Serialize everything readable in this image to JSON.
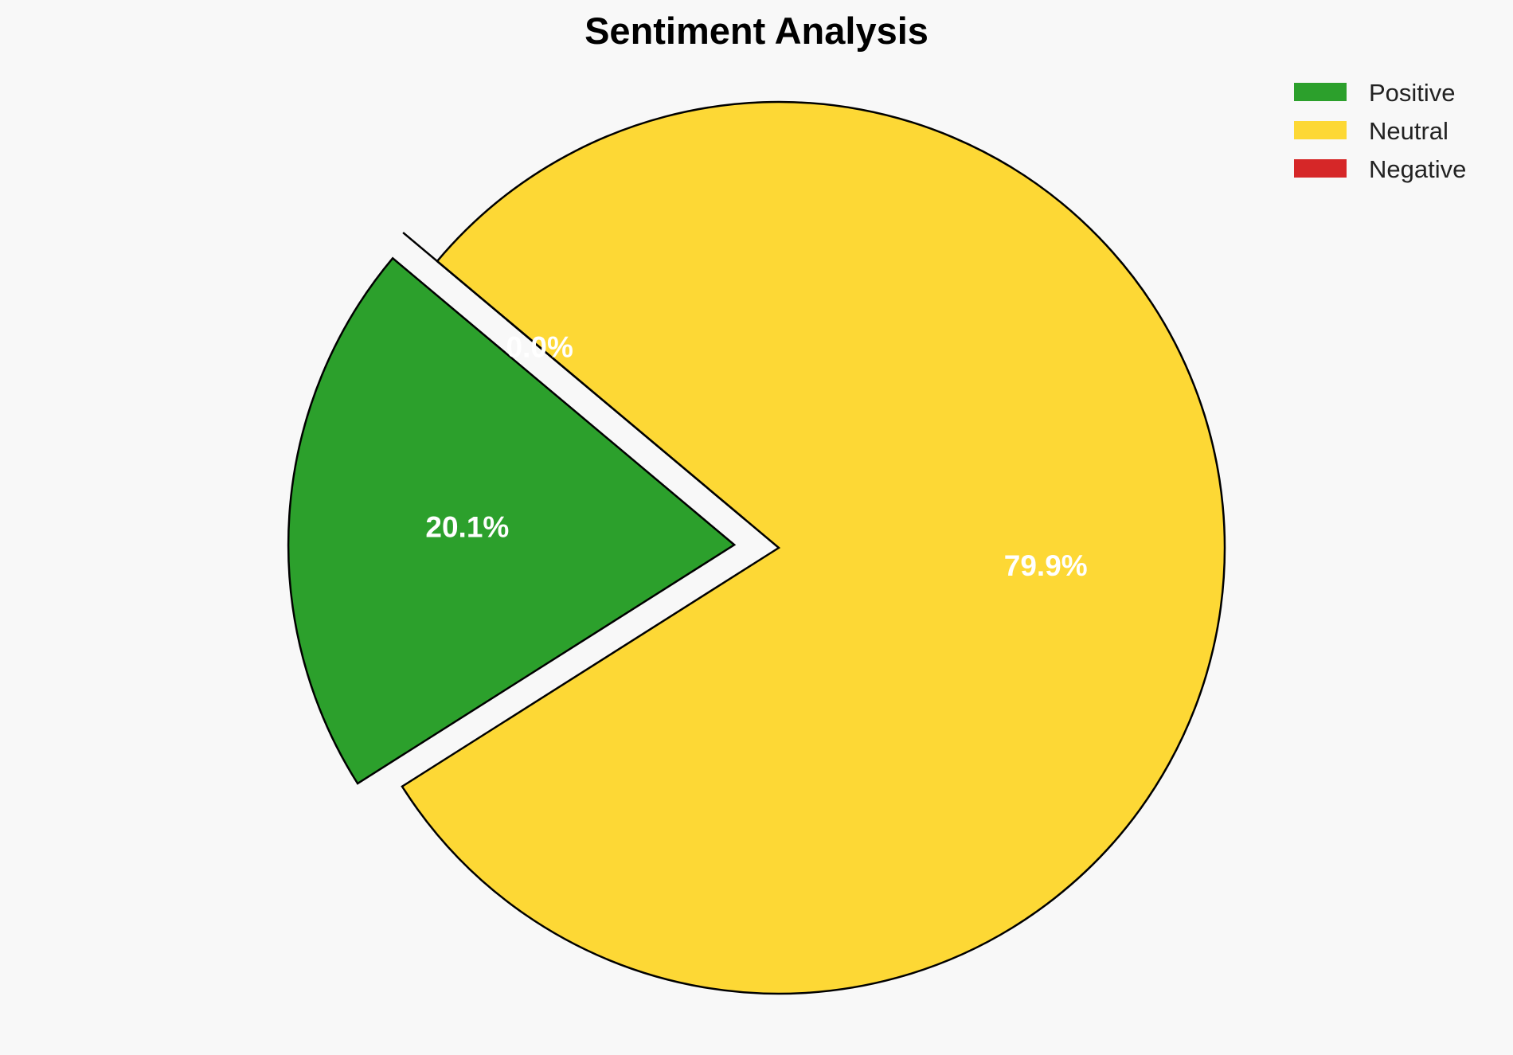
{
  "chart_data": {
    "type": "pie",
    "title": "Sentiment Analysis",
    "labels": [
      "Positive",
      "Neutral",
      "Negative"
    ],
    "values": [
      20.1,
      79.9,
      0.0
    ],
    "value_labels": [
      "20.1%",
      "79.9%",
      "0.0%"
    ],
    "colors": [
      "#2ca02c",
      "#fdd835",
      "#d62728"
    ],
    "exploded": [
      true,
      false,
      true
    ],
    "start_angle_deg": 140,
    "legend_position": "top-right"
  }
}
